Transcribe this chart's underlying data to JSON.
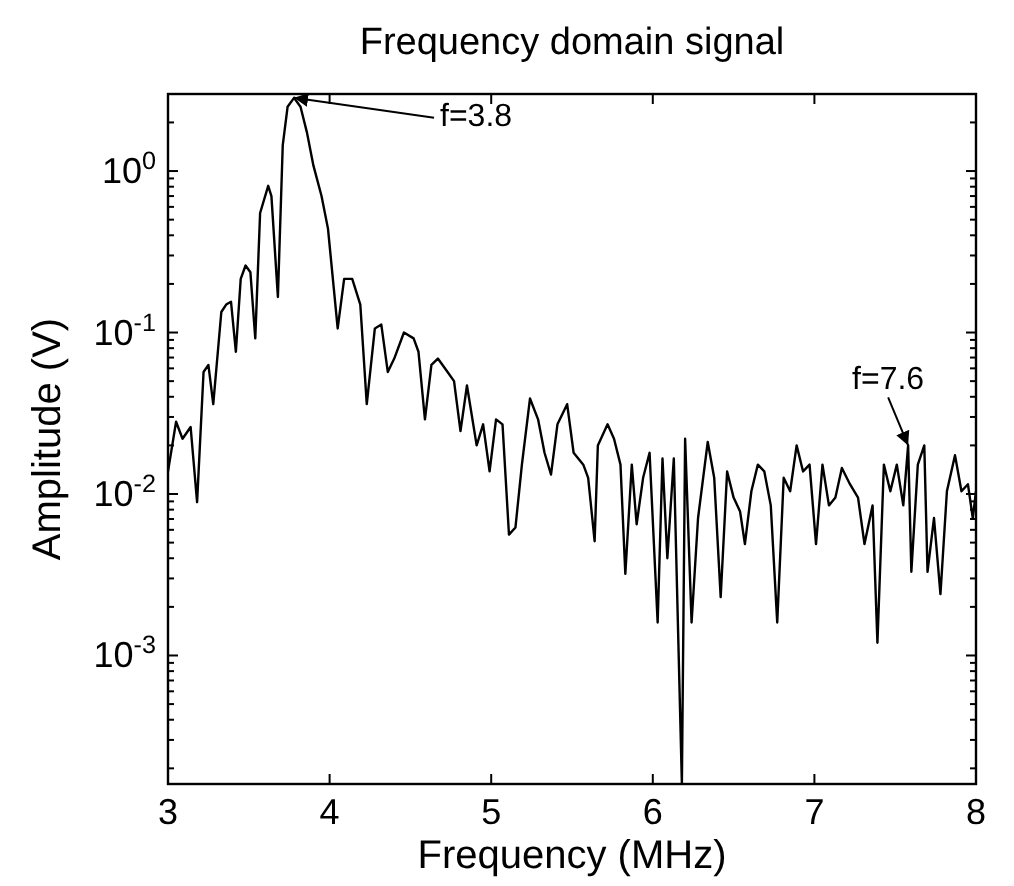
{
  "chart_data": {
    "type": "line",
    "title": "Frequency domain signal",
    "xlabel": "Frequency (MHz)",
    "ylabel": "Amplitude (V)",
    "log": "y",
    "grid": false,
    "line_style": "solid",
    "xlim": [
      3,
      8
    ],
    "xticks": [
      3,
      4,
      5,
      6,
      7,
      8
    ],
    "ylim": [
      0.00016,
      3
    ],
    "yticks": [
      {
        "value": 1,
        "label": "10$^{0}$"
      },
      {
        "value": 0.1,
        "label": "10$^{-1}$"
      },
      {
        "value": 0.01,
        "label": "10$^{-2}$"
      },
      {
        "value": 0.001,
        "label": "10$^{-3}$"
      }
    ],
    "annotations": [
      {
        "text": "f=3.8",
        "x": 3.78,
        "y": 2.84
      },
      {
        "text": "f=7.6",
        "x": 7.58,
        "y": 0.02
      }
    ],
    "series": [
      {
        "color": "#000000",
        "x": [
          3.0,
          3.05,
          3.09,
          3.14,
          3.18,
          3.22,
          3.25,
          3.28,
          3.33,
          3.36,
          3.39,
          3.42,
          3.45,
          3.48,
          3.51,
          3.54,
          3.57,
          3.62,
          3.64,
          3.68,
          3.71,
          3.74,
          3.78,
          3.82,
          3.86,
          3.9,
          3.95,
          3.99,
          4.05,
          4.09,
          4.14,
          4.19,
          4.23,
          4.28,
          4.32,
          4.36,
          4.4,
          4.46,
          4.52,
          4.55,
          4.59,
          4.63,
          4.67,
          4.73,
          4.77,
          4.81,
          4.85,
          4.91,
          4.95,
          4.99,
          5.03,
          5.07,
          5.11,
          5.15,
          5.19,
          5.24,
          5.29,
          5.33,
          5.37,
          5.41,
          5.47,
          5.51,
          5.57,
          5.6,
          5.64,
          5.66,
          5.72,
          5.76,
          5.8,
          5.83,
          5.87,
          5.9,
          5.94,
          5.98,
          6.03,
          6.06,
          6.09,
          6.13,
          6.18,
          6.2,
          6.24,
          6.28,
          6.34,
          6.38,
          6.42,
          6.46,
          6.5,
          6.54,
          6.57,
          6.61,
          6.65,
          6.69,
          6.73,
          6.77,
          6.81,
          6.85,
          6.89,
          6.93,
          6.97,
          7.01,
          7.05,
          7.09,
          7.13,
          7.17,
          7.22,
          7.27,
          7.31,
          7.36,
          7.39,
          7.43,
          7.47,
          7.51,
          7.55,
          7.58,
          7.6,
          7.64,
          7.68,
          7.7,
          7.74,
          7.78,
          7.82,
          7.87,
          7.91,
          7.95,
          7.98,
          8.0
        ],
        "values": [
          0.0138,
          0.028,
          0.022,
          0.026,
          0.0089,
          0.057,
          0.063,
          0.036,
          0.134,
          0.149,
          0.155,
          0.076,
          0.215,
          0.26,
          0.236,
          0.092,
          0.55,
          0.81,
          0.7,
          0.166,
          1.44,
          2.5,
          2.84,
          2.5,
          1.73,
          1.08,
          0.7,
          0.44,
          0.106,
          0.215,
          0.215,
          0.149,
          0.036,
          0.106,
          0.112,
          0.057,
          0.069,
          0.1,
          0.092,
          0.076,
          0.029,
          0.063,
          0.069,
          0.057,
          0.05,
          0.0245,
          0.047,
          0.02,
          0.027,
          0.0138,
          0.029,
          0.027,
          0.0056,
          0.0062,
          0.0152,
          0.039,
          0.029,
          0.018,
          0.0132,
          0.027,
          0.036,
          0.018,
          0.0152,
          0.0126,
          0.0051,
          0.02,
          0.027,
          0.022,
          0.0152,
          0.0032,
          0.0152,
          0.0065,
          0.0126,
          0.018,
          0.0016,
          0.0166,
          0.004,
          0.0166,
          0.00016,
          0.022,
          0.0016,
          0.0071,
          0.021,
          0.0126,
          0.0023,
          0.0138,
          0.0095,
          0.0078,
          0.0049,
          0.0104,
          0.0152,
          0.0138,
          0.0085,
          0.0016,
          0.0126,
          0.0104,
          0.02,
          0.0138,
          0.0152,
          0.0049,
          0.0152,
          0.0085,
          0.0095,
          0.0145,
          0.0115,
          0.0095,
          0.0049,
          0.0085,
          0.0012,
          0.0152,
          0.0104,
          0.0152,
          0.0085,
          0.02,
          0.0033,
          0.0152,
          0.02,
          0.0033,
          0.0071,
          0.0024,
          0.0104,
          0.0174,
          0.0104,
          0.0115,
          0.0071,
          0.0104
        ]
      }
    ]
  }
}
